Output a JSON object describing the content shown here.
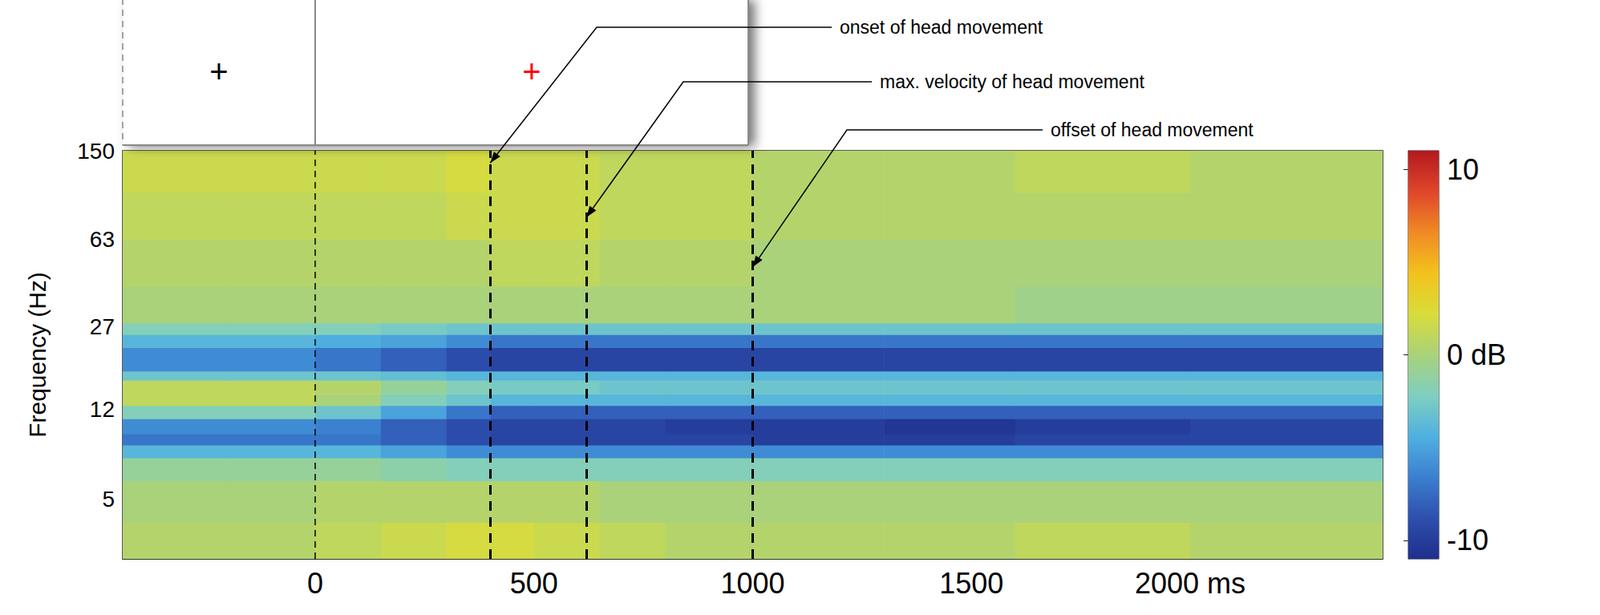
{
  "chart_data": {
    "type": "heatmap",
    "xlim": [
      -440,
      2440
    ],
    "xticks": [
      0,
      500,
      1000,
      1500,
      {
        "value": 2000,
        "label": "2000 ms"
      }
    ],
    "y_label": "Frequency (Hz)",
    "ylim": [
      2.8,
      150
    ],
    "yticks": [
      5,
      12,
      27,
      63,
      150
    ],
    "log": "y",
    "grid": false,
    "time_edges": [
      -440,
      -200,
      0,
      150,
      300,
      400,
      500,
      650,
      800,
      1000,
      1300,
      1600,
      2000,
      2440
    ],
    "freq_edges": [
      2.8,
      4,
      6,
      7.5,
      8.5,
      9.5,
      11,
      12.5,
      14,
      16,
      17.5,
      19.5,
      22,
      25,
      28,
      40,
      63,
      100,
      150
    ],
    "values": [
      [
        0.5,
        0.5,
        1,
        1.5,
        2,
        2,
        1.5,
        1,
        0.5,
        0.5,
        0.5,
        1,
        0.5
      ],
      [
        0,
        0,
        0.5,
        0.5,
        0.5,
        0.5,
        0.5,
        0,
        0,
        0,
        0,
        0,
        0
      ],
      [
        -1,
        -1,
        -1,
        -1.5,
        -2,
        -2,
        -2,
        -2,
        -2,
        -2,
        -2,
        -2,
        -2
      ],
      [
        -4,
        -4,
        -4,
        -5,
        -6,
        -6,
        -6,
        -6,
        -6,
        -6,
        -6,
        -6,
        -6
      ],
      [
        -7,
        -7,
        -7,
        -8,
        -9,
        -9.5,
        -9.5,
        -9.5,
        -9.5,
        -10,
        -10,
        -9.5,
        -9.5
      ],
      [
        -6,
        -6,
        -6.5,
        -8,
        -9,
        -9.5,
        -9.5,
        -9.5,
        -10,
        -10,
        -10.5,
        -10,
        -9.5
      ],
      [
        -2,
        -2,
        -3,
        -5,
        -7,
        -8,
        -8,
        -8,
        -8,
        -8,
        -8,
        -8,
        -8
      ],
      [
        1,
        1,
        0,
        -2,
        -3,
        -4,
        -4,
        -4,
        -4,
        -4,
        -4,
        -4,
        -4
      ],
      [
        1,
        1,
        0.5,
        -1,
        -2,
        -2.5,
        -2.5,
        -3,
        -3,
        -3,
        -3,
        -3,
        -3
      ],
      [
        -3,
        -3,
        -3,
        -3.5,
        -4,
        -4,
        -4,
        -4,
        -4,
        -4,
        -4,
        -4,
        -4
      ],
      [
        -6,
        -6,
        -7,
        -8,
        -9,
        -9.5,
        -9.5,
        -9.5,
        -9.5,
        -9.5,
        -9.5,
        -9.5,
        -9.5
      ],
      [
        -6,
        -6,
        -7,
        -8,
        -9,
        -9.5,
        -9.5,
        -9.5,
        -9.5,
        -9.5,
        -9.5,
        -9.5,
        -9.5
      ],
      [
        -4,
        -4,
        -4.5,
        -5,
        -6,
        -7,
        -7,
        -7,
        -7,
        -7,
        -7,
        -7,
        -7
      ],
      [
        -2,
        -2,
        -2,
        -2.5,
        -3,
        -3,
        -3,
        -3,
        -3,
        -3,
        -3,
        -3,
        -3
      ],
      [
        0,
        0,
        0,
        0,
        0,
        0,
        0,
        0,
        0,
        0,
        0,
        -0.5,
        -0.5
      ],
      [
        0.5,
        0.5,
        0.5,
        0.5,
        0.5,
        1,
        1,
        0.5,
        0.5,
        0,
        0,
        0,
        0
      ],
      [
        1,
        1,
        1,
        1,
        1.5,
        1.5,
        1.5,
        1,
        1,
        0.5,
        0.5,
        0.5,
        0.5
      ],
      [
        1.5,
        1.5,
        1.5,
        1.5,
        2,
        1.5,
        1.5,
        1,
        1,
        0.5,
        0.5,
        1,
        0.5
      ]
    ],
    "colorbar": {
      "range": [
        -11,
        11
      ],
      "ticks": [
        -10,
        {
          "value": 0,
          "label": "0 dB"
        },
        10
      ]
    },
    "stimulus": {
      "segments": [
        {
          "from": -440,
          "to": 0,
          "label": "+",
          "color": "black"
        },
        {
          "from": 0,
          "to": 990,
          "label": "+",
          "color": "red"
        }
      ]
    },
    "events": [
      {
        "x": 0
      },
      {
        "x": 400,
        "label": "onset of head movement"
      },
      {
        "x": 620,
        "label": "max. velocity of head movement"
      },
      {
        "x": 1000,
        "label": "offset of head movement"
      }
    ]
  }
}
